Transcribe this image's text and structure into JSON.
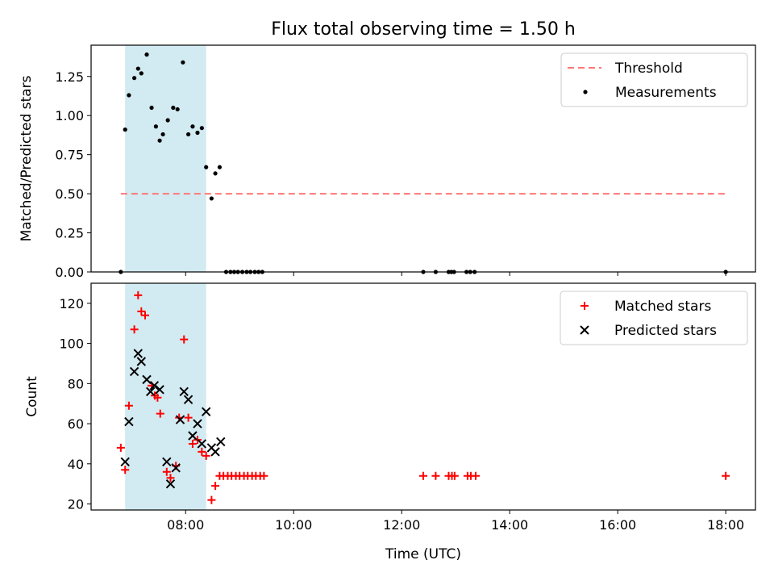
{
  "title": "Flux total observing time = 1.50 h",
  "xlabel": "Time (UTC)",
  "x_ticks": [
    "08:00",
    "10:00",
    "12:00",
    "14:00",
    "16:00",
    "18:00"
  ],
  "x_tick_hours": [
    8,
    10,
    12,
    14,
    16,
    18
  ],
  "shaded_window": {
    "start_hour": 6.88,
    "end_hour": 8.38,
    "color": "#add8e6"
  },
  "chart_data": [
    {
      "type": "scatter",
      "name": "top",
      "ylabel": "Matched/Predicted stars",
      "ylim": [
        0,
        1.45
      ],
      "y_ticks": [
        "0.00",
        "0.25",
        "0.50",
        "0.75",
        "1.00",
        "1.25"
      ],
      "y_tick_values": [
        0,
        0.25,
        0.5,
        0.75,
        1.0,
        1.25
      ],
      "xlim_hours": [
        6.25,
        18.55
      ],
      "threshold": {
        "label": "Threshold",
        "value": 0.5,
        "x_start": 6.8,
        "x_end": 18.0,
        "color": "#ff7777"
      },
      "series": [
        {
          "name": "Measurements",
          "color": "#000000",
          "x": [
            6.8,
            6.88,
            6.95,
            7.05,
            7.12,
            7.18,
            7.28,
            7.37,
            7.45,
            7.52,
            7.58,
            7.67,
            7.77,
            7.85,
            7.95,
            8.05,
            8.13,
            8.22,
            8.3,
            8.38,
            8.48,
            8.55,
            8.63,
            8.75,
            8.83,
            8.9,
            8.97,
            9.05,
            9.13,
            9.2,
            9.28,
            9.35,
            9.42,
            12.4,
            12.63,
            12.87,
            12.92,
            12.97,
            13.2,
            13.27,
            13.35,
            18.0
          ],
          "y": [
            0.0,
            0.91,
            1.13,
            1.24,
            1.3,
            1.27,
            1.39,
            1.05,
            0.93,
            0.84,
            0.88,
            0.97,
            1.05,
            1.04,
            1.34,
            0.88,
            0.93,
            0.89,
            0.92,
            0.67,
            0.47,
            0.63,
            0.67,
            0.0,
            0.0,
            0.0,
            0.0,
            0.0,
            0.0,
            0.0,
            0.0,
            0.0,
            0.0,
            0.0,
            0.0,
            0.0,
            0.0,
            0.0,
            0.0,
            0.0,
            0.0,
            0.0
          ]
        }
      ],
      "legend": {
        "placement": "top-right",
        "entries": [
          "Threshold",
          "Measurements"
        ]
      }
    },
    {
      "type": "scatter",
      "name": "bottom",
      "ylabel": "Count",
      "ylim": [
        17,
        130
      ],
      "y_ticks": [
        "20",
        "40",
        "60",
        "80",
        "100",
        "120"
      ],
      "y_tick_values": [
        20,
        40,
        60,
        80,
        100,
        120
      ],
      "xlim_hours": [
        6.25,
        18.55
      ],
      "series": [
        {
          "name": "Matched stars",
          "marker": "plus",
          "color": "#ff0000",
          "x": [
            6.8,
            6.88,
            6.95,
            7.05,
            7.12,
            7.18,
            7.25,
            7.37,
            7.43,
            7.48,
            7.53,
            7.65,
            7.72,
            7.82,
            7.88,
            7.97,
            8.05,
            8.13,
            8.22,
            8.3,
            8.38,
            8.48,
            8.55,
            8.63,
            8.7,
            8.78,
            8.85,
            8.93,
            9.0,
            9.08,
            9.15,
            9.23,
            9.3,
            9.38,
            9.45,
            12.4,
            12.63,
            12.87,
            12.93,
            12.98,
            13.22,
            13.28,
            13.37,
            18.0
          ],
          "y": [
            48,
            37,
            69,
            107,
            124,
            116,
            114,
            79,
            74,
            73,
            65,
            36,
            33,
            39,
            63,
            102,
            63,
            50,
            52,
            46,
            44,
            22,
            29,
            34,
            34,
            34,
            34,
            34,
            34,
            34,
            34,
            34,
            34,
            34,
            34,
            34,
            34,
            34,
            34,
            34,
            34,
            34,
            34,
            34
          ]
        },
        {
          "name": "Predicted stars",
          "marker": "x",
          "color": "#000000",
          "x": [
            6.88,
            6.95,
            7.05,
            7.12,
            7.18,
            7.28,
            7.35,
            7.42,
            7.52,
            7.65,
            7.72,
            7.82,
            7.9,
            7.97,
            8.05,
            8.13,
            8.22,
            8.3,
            8.38,
            8.48,
            8.55,
            8.65
          ],
          "y": [
            41,
            61,
            86,
            95,
            91,
            82,
            76,
            79,
            77,
            41,
            30,
            38,
            62,
            76,
            72,
            54,
            60,
            50,
            66,
            48,
            46,
            51
          ]
        }
      ],
      "legend": {
        "placement": "top-right",
        "entries": [
          "Matched stars",
          "Predicted stars"
        ]
      }
    }
  ]
}
